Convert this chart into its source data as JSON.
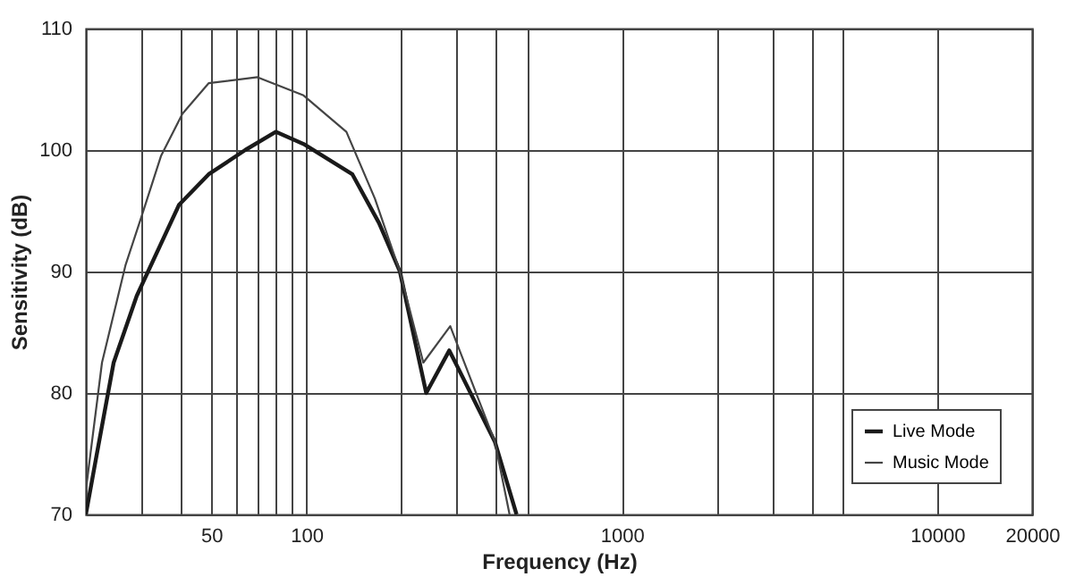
{
  "chart_data": {
    "type": "line",
    "xlabel": "Frequency (Hz)",
    "ylabel": "Sensitivity (dB)",
    "log": "x",
    "xlim": [
      20,
      20000
    ],
    "ylim": [
      70,
      110
    ],
    "xticks": [
      {
        "value": 30,
        "label": null
      },
      {
        "value": 40,
        "label": null
      },
      50,
      {
        "value": 60,
        "label": null
      },
      {
        "value": 70,
        "label": null
      },
      {
        "value": 80,
        "label": null
      },
      {
        "value": 90,
        "label": null
      },
      100,
      {
        "value": 200,
        "label": null
      },
      {
        "value": 300,
        "label": null
      },
      {
        "value": 400,
        "label": null
      },
      {
        "value": 500,
        "label": null
      },
      1000,
      {
        "value": 2000,
        "label": null
      },
      {
        "value": 3000,
        "label": null
      },
      {
        "value": 4000,
        "label": null
      },
      {
        "value": 5000,
        "label": null
      },
      10000,
      20000
    ],
    "yticks": [
      70,
      80,
      90,
      100,
      110
    ],
    "grid": true,
    "legend": "bottom right",
    "marker": "none",
    "line_style": "solid",
    "series": [
      {
        "name": "Live Mode",
        "color": "#1a1a1a",
        "x": [
          20,
          21.5,
          24.5,
          29,
          39.5,
          49,
          64,
          80,
          98,
          140,
          170,
          198,
          240,
          284,
          396,
          464
        ],
        "values": [
          70,
          74.5,
          82.5,
          88,
          95.5,
          98,
          100,
          101.5,
          100.5,
          98,
          94,
          90,
          80,
          83.5,
          76,
          70
        ]
      },
      {
        "name": "Music Mode",
        "color": "#444444",
        "x": [
          20,
          22.5,
          26.7,
          30,
          34.6,
          40.5,
          49,
          70,
          98,
          134,
          165,
          198,
          235,
          286,
          396,
          441
        ],
        "values": [
          72,
          82.5,
          90.5,
          94.5,
          99.5,
          103,
          105.5,
          106,
          104.5,
          101.5,
          96,
          90,
          82.5,
          85.5,
          76,
          70
        ]
      }
    ]
  }
}
